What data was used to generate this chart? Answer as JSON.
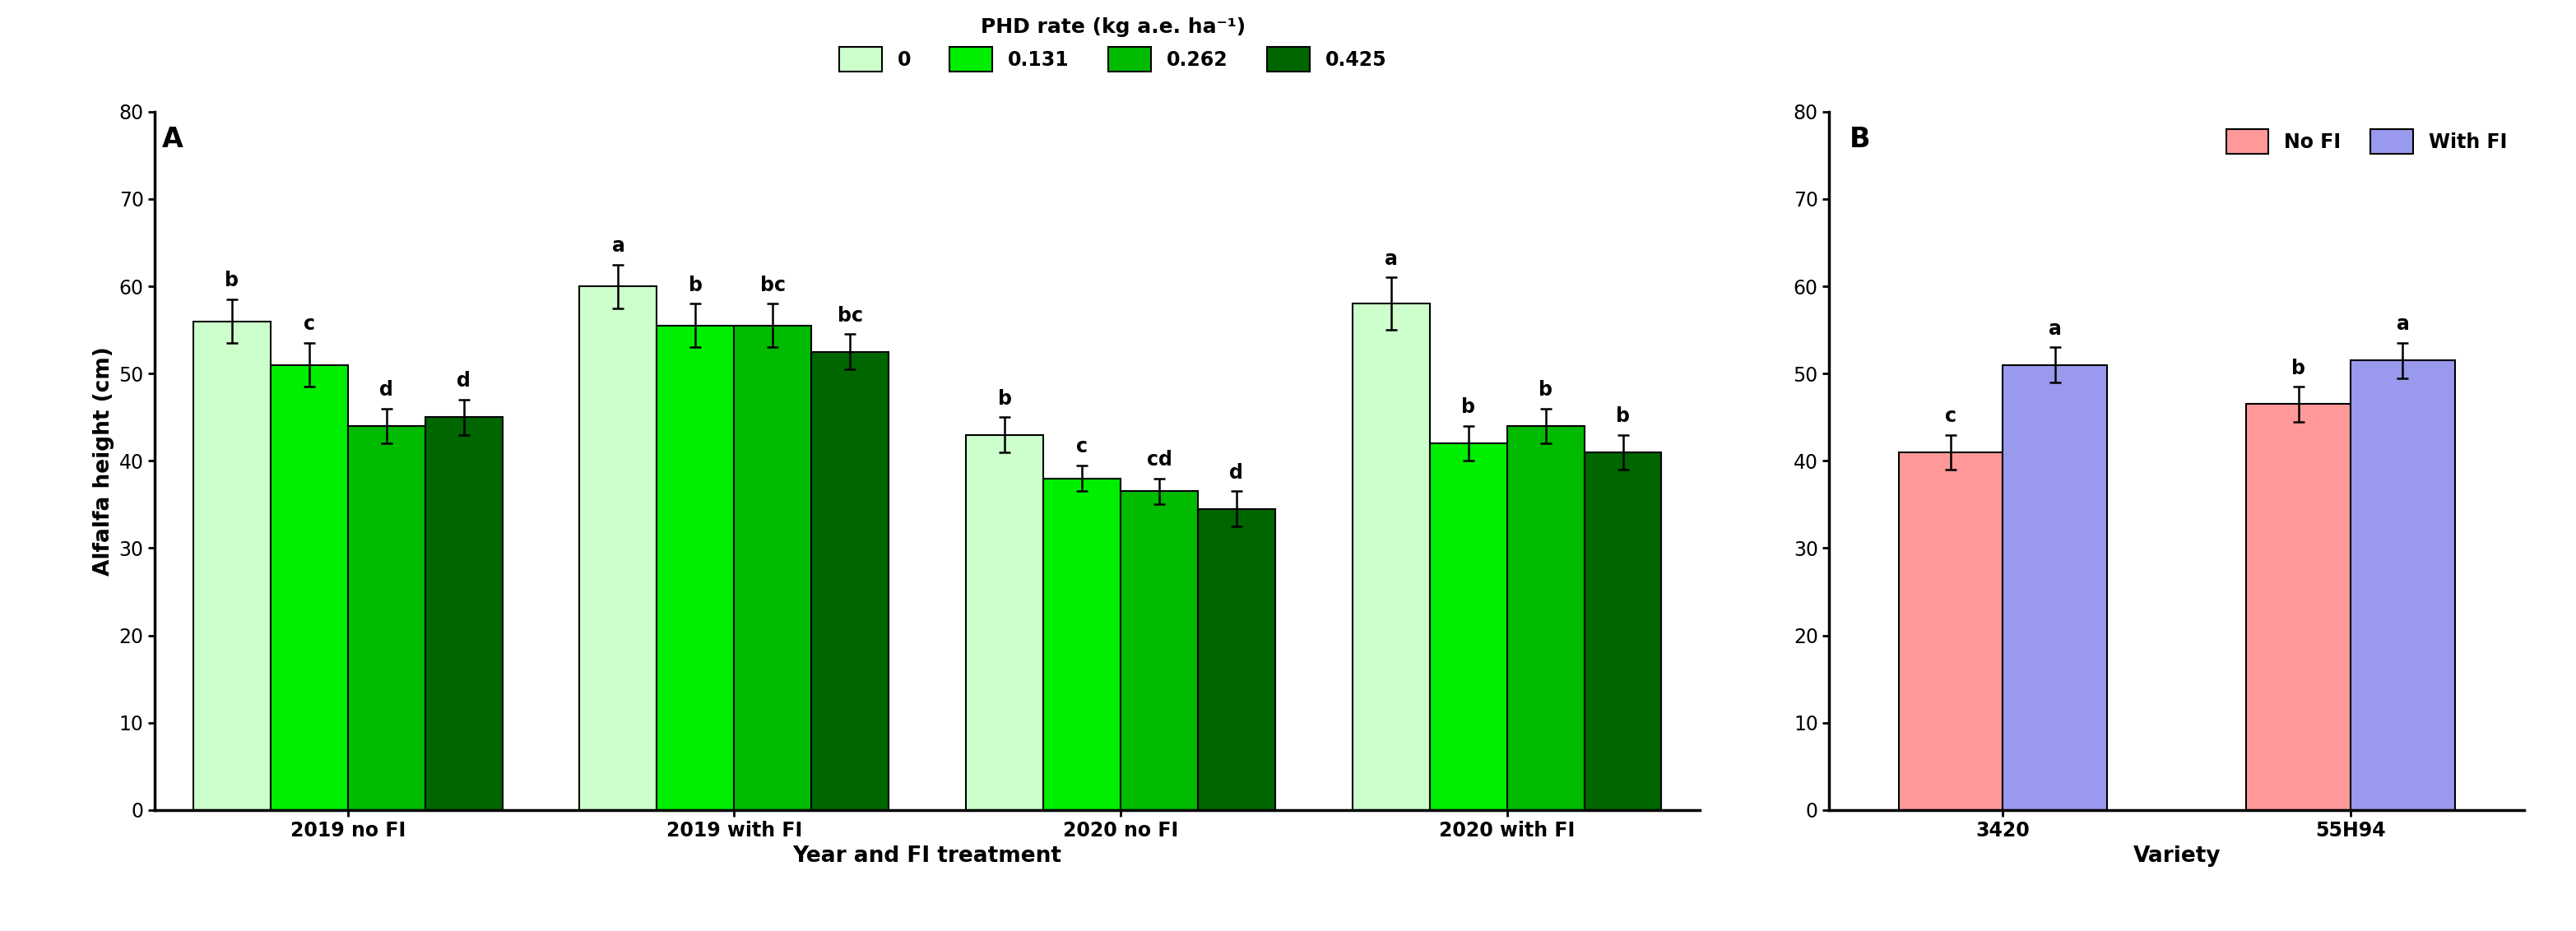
{
  "panel_A": {
    "title": "A",
    "groups": [
      "2019 no FI",
      "2019 with FI",
      "2020 no FI",
      "2020 with FI"
    ],
    "bar_values": [
      [
        56.0,
        60.0,
        43.0,
        58.0
      ],
      [
        51.0,
        55.5,
        38.0,
        42.0
      ],
      [
        44.0,
        55.5,
        36.5,
        44.0
      ],
      [
        45.0,
        52.5,
        34.5,
        41.0
      ]
    ],
    "bar_errors": [
      [
        2.5,
        2.5,
        2.0,
        3.0
      ],
      [
        2.5,
        2.5,
        1.5,
        2.0
      ],
      [
        2.0,
        2.5,
        1.5,
        2.0
      ],
      [
        2.0,
        2.0,
        2.0,
        2.0
      ]
    ],
    "bar_letters": [
      [
        "b",
        "a",
        "b",
        "a"
      ],
      [
        "c",
        "b",
        "c",
        "b"
      ],
      [
        "d",
        "bc",
        "cd",
        "b"
      ],
      [
        "d",
        "bc",
        "d",
        "b"
      ]
    ],
    "colors": [
      "#ccffcc",
      "#00ee00",
      "#00bb00",
      "#006600"
    ],
    "bar_edge_color": "black",
    "xlabel": "Year and FI treatment",
    "ylabel": "Alfalfa height (cm)",
    "ylim": [
      0,
      80
    ],
    "yticks": [
      0,
      10,
      20,
      30,
      40,
      50,
      60,
      70,
      80
    ],
    "legend_title": "PHD rate (kg a.e. ha⁻¹)",
    "legend_labels": [
      "0",
      "0.131",
      "0.262",
      "0.425"
    ]
  },
  "panel_B": {
    "title": "B",
    "groups": [
      "3420",
      "55H94"
    ],
    "bar_values": [
      [
        41.0,
        46.5
      ],
      [
        51.0,
        51.5
      ]
    ],
    "bar_errors": [
      [
        2.0,
        2.0
      ],
      [
        2.0,
        2.0
      ]
    ],
    "bar_letters": [
      [
        "c",
        "b"
      ],
      [
        "a",
        "a"
      ]
    ],
    "colors": [
      "#ff9999",
      "#9999ee"
    ],
    "bar_edge_color": "black",
    "xlabel": "Variety",
    "ylim": [
      0,
      80
    ],
    "yticks": [
      0,
      10,
      20,
      30,
      40,
      50,
      60,
      70,
      80
    ],
    "legend_labels": [
      "No FI",
      "With FI"
    ]
  },
  "figure_width": 31.31,
  "figure_height": 11.32,
  "background_color": "white"
}
